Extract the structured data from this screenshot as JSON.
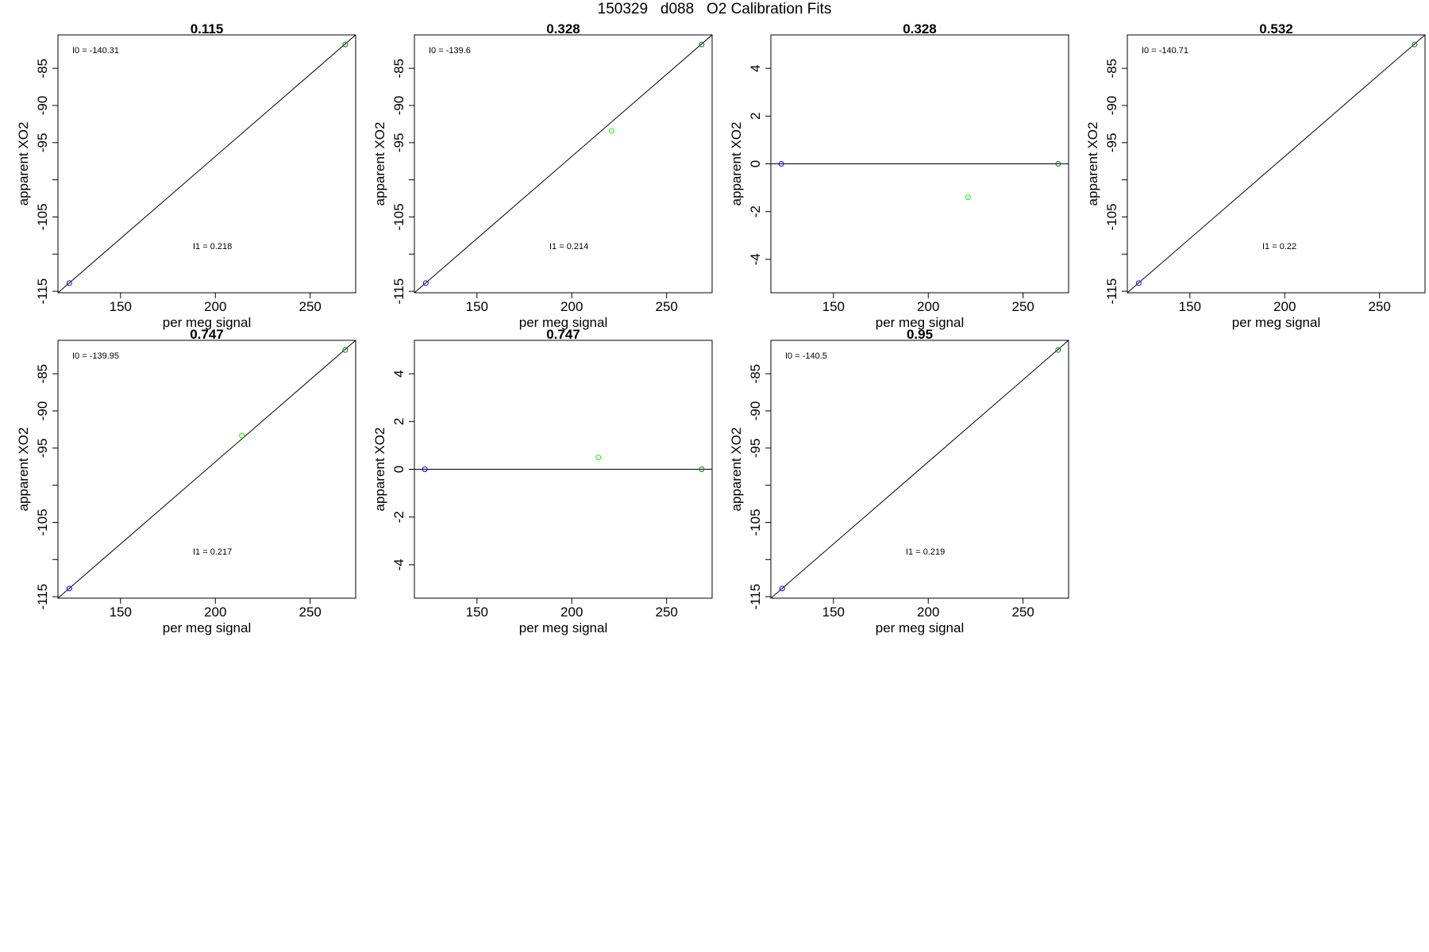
{
  "page_title": "150329   d088   O2 Calibration Fits",
  "colors": {
    "low_point": "#0000ff",
    "mid_point": "#00ff00",
    "high_point": "#008000",
    "line": "#000000"
  },
  "chart_data": [
    {
      "type": "scatter",
      "title": "0.115",
      "xlabel": "per meg signal",
      "ylabel": "apparent XO2",
      "xticks": [
        150,
        200,
        250
      ],
      "yticks": [
        -85,
        -90,
        -95,
        -105,
        -115
      ],
      "xlim": [
        117,
        274
      ],
      "ylim": [
        -115.2,
        -80.5
      ],
      "fit_line": {
        "type": "linear",
        "from": [
          117,
          -115.2
        ],
        "to": [
          274,
          -80.5
        ]
      },
      "annotations": [
        {
          "label": "I0 = ",
          "value": "-140.31"
        },
        {
          "label": "I1 = ",
          "value": "0.218"
        }
      ],
      "points": [
        {
          "x": 123,
          "y": -113.9,
          "role": "low"
        },
        {
          "x": 268.5,
          "y": -81.8,
          "role": "high"
        }
      ]
    },
    {
      "type": "scatter",
      "title": "0.328",
      "xlabel": "per meg signal",
      "ylabel": "apparent XO2",
      "xticks": [
        150,
        200,
        250
      ],
      "yticks": [
        -85,
        -90,
        -95,
        -105,
        -115
      ],
      "xlim": [
        117,
        274
      ],
      "ylim": [
        -115.2,
        -80.5
      ],
      "fit_line": {
        "type": "linear",
        "from": [
          117,
          -115.2
        ],
        "to": [
          274,
          -80.5
        ]
      },
      "annotations": [
        {
          "label": "I0 = ",
          "value": "-139.6"
        },
        {
          "label": "I1 = ",
          "value": "0.214"
        }
      ],
      "points": [
        {
          "x": 123,
          "y": -113.9,
          "role": "low"
        },
        {
          "x": 221,
          "y": -93.4,
          "role": "mid"
        },
        {
          "x": 268.5,
          "y": -81.8,
          "role": "high"
        }
      ]
    },
    {
      "type": "scatter",
      "title": "0.328",
      "xlabel": "per meg signal",
      "ylabel": "apparent XO2",
      "xticks": [
        150,
        200,
        250
      ],
      "yticks": [
        4,
        2,
        0,
        -2,
        -4
      ],
      "xlim": [
        117,
        274
      ],
      "ylim": [
        -5.4,
        5.4
      ],
      "fit_line": {
        "type": "hline",
        "y": 0
      },
      "annotations": [],
      "points": [
        {
          "x": 122.5,
          "y": 0,
          "role": "low"
        },
        {
          "x": 221,
          "y": -1.4,
          "role": "mid"
        },
        {
          "x": 268.5,
          "y": 0,
          "role": "high"
        }
      ]
    },
    {
      "type": "scatter",
      "title": "0.532",
      "xlabel": "per meg signal",
      "ylabel": "apparent XO2",
      "xticks": [
        150,
        200,
        250
      ],
      "yticks": [
        -85,
        -90,
        -95,
        -105,
        -115
      ],
      "xlim": [
        117,
        274
      ],
      "ylim": [
        -115.2,
        -80.5
      ],
      "fit_line": {
        "type": "linear",
        "from": [
          117,
          -115.2
        ],
        "to": [
          274,
          -80.5
        ]
      },
      "annotations": [
        {
          "label": "I0 = ",
          "value": "-140.71"
        },
        {
          "label": "I1 = ",
          "value": "0.22"
        }
      ],
      "points": [
        {
          "x": 123,
          "y": -113.9,
          "role": "low"
        },
        {
          "x": 268.5,
          "y": -81.8,
          "role": "high"
        }
      ]
    },
    {
      "type": "scatter",
      "title": "0.747",
      "xlabel": "per meg signal",
      "ylabel": "apparent XO2",
      "xticks": [
        150,
        200,
        250
      ],
      "yticks": [
        -85,
        -90,
        -95,
        -105,
        -115
      ],
      "xlim": [
        117,
        274
      ],
      "ylim": [
        -115.2,
        -80.5
      ],
      "fit_line": {
        "type": "linear",
        "from": [
          117,
          -115.2
        ],
        "to": [
          274,
          -80.5
        ]
      },
      "annotations": [
        {
          "label": "I0 = ",
          "value": "-139.95"
        },
        {
          "label": "I1 = ",
          "value": "0.217"
        }
      ],
      "points": [
        {
          "x": 123,
          "y": -113.9,
          "role": "low"
        },
        {
          "x": 214,
          "y": -93.3,
          "role": "mid"
        },
        {
          "x": 268.5,
          "y": -81.8,
          "role": "high"
        }
      ]
    },
    {
      "type": "scatter",
      "title": "0.747",
      "xlabel": "per meg signal",
      "ylabel": "apparent XO2",
      "xticks": [
        150,
        200,
        250
      ],
      "yticks": [
        4,
        2,
        0,
        -2,
        -4
      ],
      "xlim": [
        117,
        274
      ],
      "ylim": [
        -5.4,
        5.4
      ],
      "fit_line": {
        "type": "hline",
        "y": 0
      },
      "annotations": [],
      "points": [
        {
          "x": 122.5,
          "y": 0,
          "role": "low"
        },
        {
          "x": 214,
          "y": 0.5,
          "role": "mid"
        },
        {
          "x": 268.5,
          "y": 0,
          "role": "high"
        }
      ]
    },
    {
      "type": "scatter",
      "title": "0.95",
      "xlabel": "per meg signal",
      "ylabel": "apparent XO2",
      "xticks": [
        150,
        200,
        250
      ],
      "yticks": [
        -85,
        -90,
        -95,
        -105,
        -115
      ],
      "xlim": [
        117,
        274
      ],
      "ylim": [
        -115.2,
        -80.5
      ],
      "fit_line": {
        "type": "linear",
        "from": [
          117,
          -115.2
        ],
        "to": [
          274,
          -80.5
        ]
      },
      "annotations": [
        {
          "label": "I0 = ",
          "value": "-140.5"
        },
        {
          "label": "I1 = ",
          "value": "0.219"
        }
      ],
      "points": [
        {
          "x": 123,
          "y": -113.9,
          "role": "low"
        },
        {
          "x": 268.5,
          "y": -81.8,
          "role": "high"
        }
      ]
    }
  ]
}
